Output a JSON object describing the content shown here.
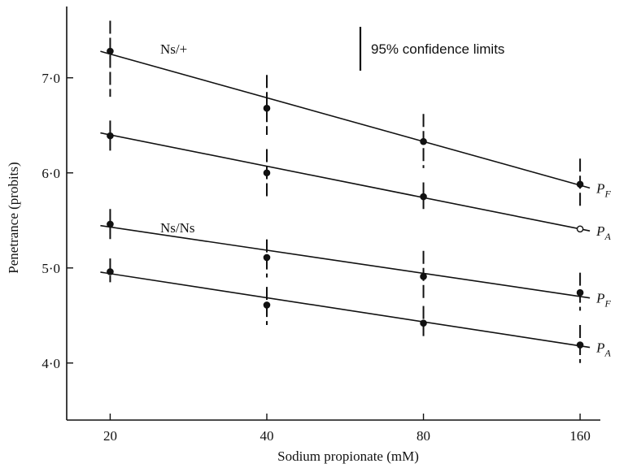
{
  "chart_data": {
    "type": "scatter",
    "x_scale": "log",
    "x": [
      20,
      40,
      80,
      160
    ],
    "xticks": [
      "20",
      "40",
      "80",
      "160"
    ],
    "yticks": [
      "4·0",
      "5·0",
      "6·0",
      "7·0"
    ],
    "ytick_values": [
      4,
      5,
      6,
      7
    ],
    "xlabel": "Sodium propionate (mM)",
    "ylabel": "Penetrance (probits)",
    "ylim": [
      3.4,
      7.75
    ],
    "xlim": [
      16.5,
      175
    ],
    "legend": "95% confidence limits",
    "legend_position": "top-right",
    "group_labels": [
      {
        "text": "Ns/+",
        "near_series": 0
      },
      {
        "text": "Ns/Ns",
        "near_series": 2
      }
    ],
    "series": [
      {
        "label": "P",
        "sub": "F",
        "marker": "filled",
        "line": [
          7.25,
          5.87
        ],
        "points": [
          {
            "x": 20,
            "y": 7.28,
            "lo": 6.8,
            "hi": 7.6
          },
          {
            "x": 40,
            "y": 6.68,
            "lo": 6.4,
            "hi": 7.03
          },
          {
            "x": 80,
            "y": 6.33,
            "lo": 6.05,
            "hi": 6.62
          },
          {
            "x": 160,
            "y": 5.88,
            "lo": 5.65,
            "hi": 6.15
          }
        ]
      },
      {
        "label": "P",
        "sub": "A",
        "marker": "mixed",
        "line": [
          6.4,
          5.41
        ],
        "points": [
          {
            "x": 20,
            "y": 6.39,
            "lo": 6.22,
            "hi": 6.55,
            "open": false
          },
          {
            "x": 40,
            "y": 6.0,
            "lo": 5.75,
            "hi": 6.25,
            "open": false
          },
          {
            "x": 80,
            "y": 5.75,
            "lo": 5.62,
            "hi": 5.9,
            "open": false
          },
          {
            "x": 160,
            "y": 5.41,
            "lo": 5.41,
            "hi": 5.41,
            "open": true
          }
        ]
      },
      {
        "label": "P",
        "sub": "F",
        "marker": "filled",
        "line": [
          5.43,
          4.7
        ],
        "points": [
          {
            "x": 20,
            "y": 5.46,
            "lo": 5.3,
            "hi": 5.62
          },
          {
            "x": 40,
            "y": 5.11,
            "lo": 4.9,
            "hi": 5.3
          },
          {
            "x": 80,
            "y": 4.91,
            "lo": 4.65,
            "hi": 5.18
          },
          {
            "x": 160,
            "y": 4.74,
            "lo": 4.55,
            "hi": 4.95
          }
        ]
      },
      {
        "label": "P",
        "sub": "A",
        "marker": "filled",
        "line": [
          4.94,
          4.18
        ],
        "points": [
          {
            "x": 20,
            "y": 4.96,
            "lo": 4.85,
            "hi": 5.1
          },
          {
            "x": 40,
            "y": 4.61,
            "lo": 4.4,
            "hi": 4.8
          },
          {
            "x": 80,
            "y": 4.42,
            "lo": 4.25,
            "hi": 4.6
          },
          {
            "x": 160,
            "y": 4.19,
            "lo": 4.0,
            "hi": 4.4
          }
        ]
      }
    ]
  }
}
